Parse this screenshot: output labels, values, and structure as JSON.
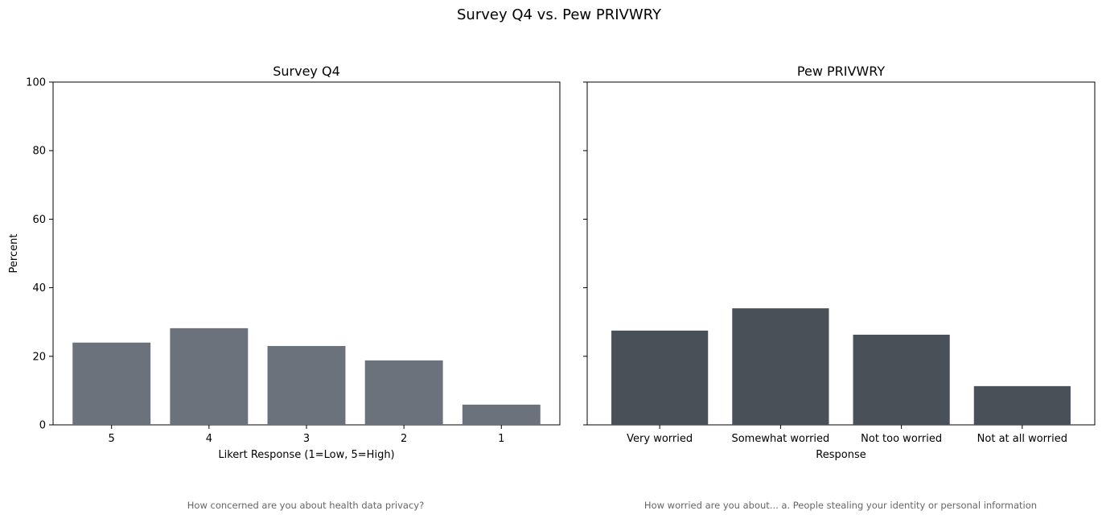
{
  "figure": {
    "suptitle": "Survey Q4 vs. Pew PRIVWRY"
  },
  "colors": {
    "survey_bar": "#6b727c",
    "pew_bar": "#4a5058",
    "caption_text": "#666666",
    "axis": "#000000"
  },
  "chart_data": [
    {
      "type": "bar",
      "title": "Survey Q4",
      "xlabel": "Likert Response (1=Low, 5=High)",
      "ylabel": "Percent",
      "ylim": [
        0,
        100
      ],
      "yticks": [
        "0",
        "20",
        "40",
        "60",
        "80",
        "100"
      ],
      "categories": [
        "5",
        "4",
        "3",
        "2",
        "1"
      ],
      "values": [
        24.0,
        28.2,
        23.0,
        18.8,
        5.9
      ],
      "caption": "How concerned are you about health data privacy?",
      "grid": false,
      "legend": "none"
    },
    {
      "type": "bar",
      "title": "Pew PRIVWRY",
      "xlabel": "Response",
      "ylabel": "",
      "ylim": [
        0,
        100
      ],
      "shared_y": true,
      "categories": [
        "Very worried",
        "Somewhat worried",
        "Not too worried",
        "Not at all worried"
      ],
      "values": [
        27.5,
        34.0,
        26.3,
        11.3
      ],
      "caption": "How worried are you about... a. People stealing your identity or personal information",
      "grid": false,
      "legend": "none"
    }
  ]
}
